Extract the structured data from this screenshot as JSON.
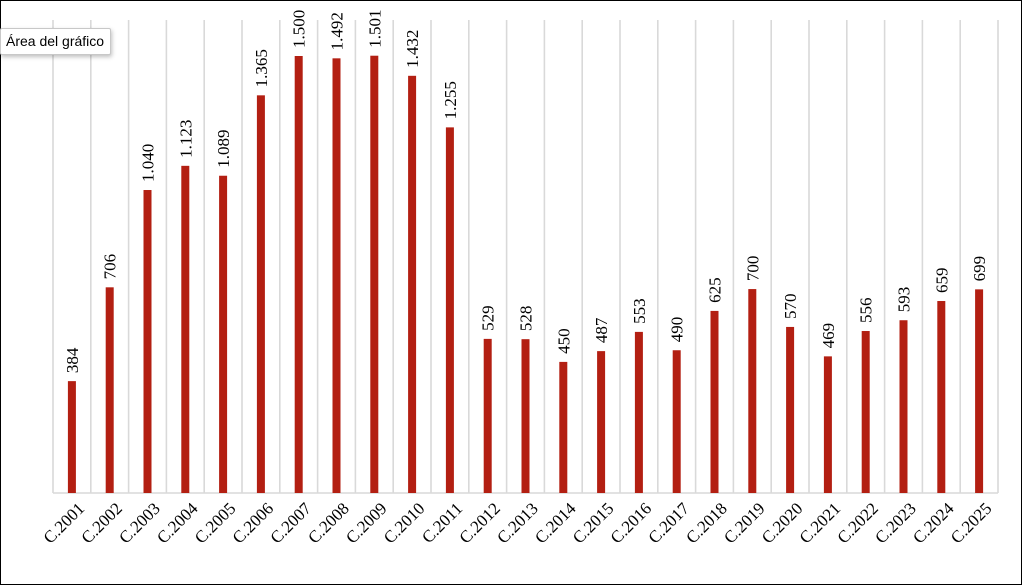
{
  "tooltip": {
    "label": "Área del gráfico"
  },
  "chart_data": {
    "type": "bar",
    "categories": [
      "C.2001",
      "C.2002",
      "C.2003",
      "C.2004",
      "C.2005",
      "C.2006",
      "C.2007",
      "C.2008",
      "C.2009",
      "C.2010",
      "C.2011",
      "C.2012",
      "C.2013",
      "C.2014",
      "C.2015",
      "C.2016",
      "C.2017",
      "C.2018",
      "C.2019",
      "C.2020",
      "C.2021",
      "C.2022",
      "C.2023",
      "C.2024",
      "C.2025"
    ],
    "values": [
      384,
      706,
      1040,
      1123,
      1089,
      1365,
      1500,
      1492,
      1501,
      1432,
      1255,
      529,
      528,
      450,
      487,
      553,
      490,
      625,
      700,
      570,
      469,
      556,
      593,
      659,
      699
    ],
    "value_labels": [
      "384",
      "706",
      "1.040",
      "1.123",
      "1.089",
      "1.365",
      "1.500",
      "1.492",
      "1.501",
      "1.432",
      "1.255",
      "529",
      "528",
      "450",
      "487",
      "553",
      "490",
      "625",
      "700",
      "570",
      "469",
      "556",
      "593",
      "659",
      "699"
    ],
    "ylim": [
      0,
      1500
    ],
    "grid": "vertical",
    "bar_color": "#b31f12"
  }
}
